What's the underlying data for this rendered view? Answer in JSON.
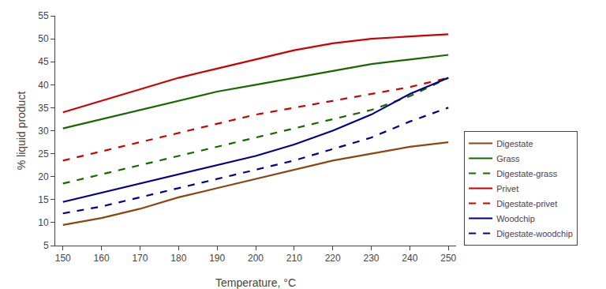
{
  "chart_data": {
    "type": "line",
    "xlabel": "Temperature, °C",
    "ylabel": "% liquid product",
    "x": [
      150,
      160,
      170,
      180,
      190,
      200,
      210,
      220,
      230,
      240,
      250
    ],
    "series": [
      {
        "name": "Digestate",
        "color": "#8B4513",
        "line_style": "solid",
        "values": [
          9.5,
          11.0,
          13.0,
          15.5,
          17.5,
          19.5,
          21.5,
          23.5,
          25.0,
          26.5,
          27.5
        ]
      },
      {
        "name": "Grass",
        "color": "#1a6600",
        "line_style": "solid",
        "values": [
          30.5,
          32.5,
          34.5,
          36.5,
          38.5,
          40.0,
          41.5,
          43.0,
          44.5,
          45.5,
          46.5
        ]
      },
      {
        "name": "Digestate-grass",
        "color": "#1a6600",
        "line_style": "dashed",
        "values": [
          18.5,
          20.5,
          22.5,
          24.5,
          26.5,
          28.5,
          30.5,
          32.5,
          34.5,
          37.5,
          41.5
        ]
      },
      {
        "name": "Privet",
        "color": "#cc0000",
        "line_style": "solid",
        "values": [
          34.0,
          36.5,
          39.0,
          41.5,
          43.5,
          45.5,
          47.5,
          49.0,
          50.0,
          50.5,
          51.0
        ]
      },
      {
        "name": "Digestate-privet",
        "color": "#cc0000",
        "line_style": "dashed",
        "values": [
          23.5,
          25.5,
          27.5,
          29.5,
          31.5,
          33.5,
          35.0,
          36.5,
          38.0,
          39.5,
          41.5
        ]
      },
      {
        "name": "Woodchip",
        "color": "#00008B",
        "line_style": "solid",
        "values": [
          14.5,
          16.5,
          18.5,
          20.5,
          22.5,
          24.5,
          27.0,
          30.0,
          33.5,
          38.0,
          41.5
        ]
      },
      {
        "name": "Digestate-woodchip",
        "color": "#00008B",
        "line_style": "dashed",
        "values": [
          12.0,
          13.5,
          15.5,
          17.5,
          19.5,
          21.5,
          23.5,
          26.0,
          28.5,
          32.0,
          35.0
        ]
      }
    ],
    "xlim": [
      148,
      252
    ],
    "ylim": [
      5,
      55
    ],
    "xticks": [
      150,
      160,
      170,
      180,
      190,
      200,
      210,
      220,
      230,
      240,
      250
    ],
    "yticks": [
      5,
      10,
      15,
      20,
      25,
      30,
      35,
      40,
      45,
      50,
      55
    ],
    "grid": false,
    "legend": "lower right"
  }
}
